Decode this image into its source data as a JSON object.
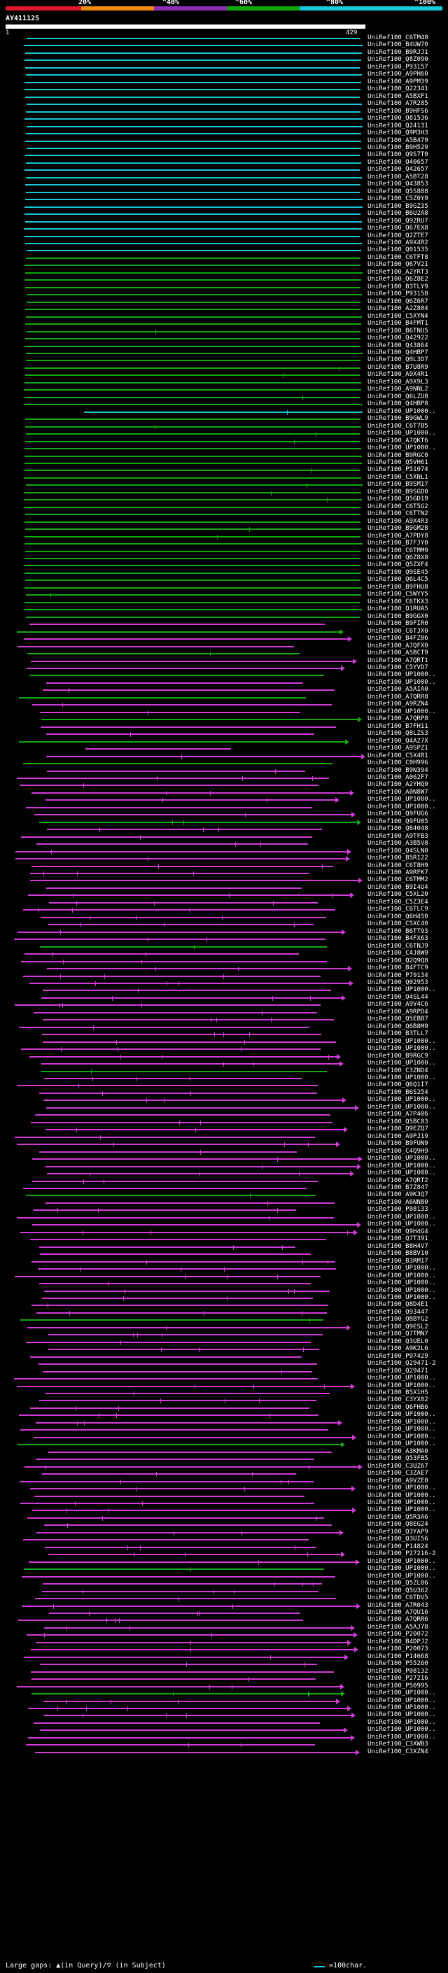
{
  "scale": {
    "labels": [
      "20%",
      "^40%",
      "^60%",
      "^80%",
      "^100%"
    ],
    "colors": [
      "#e01a2c",
      "#f08a10",
      "#8c2fb5",
      "#13a80d",
      "#18c8d8"
    ]
  },
  "query": {
    "id": "AY411125",
    "start": "1",
    "end": "429"
  },
  "footer": {
    "left_text": "Large gaps: ▲(in Query)/▽ (in Subject)",
    "right_text": "=100char.",
    "legend_color": "#18c8d8"
  },
  "colors": {
    "cyan": "#18c8d8",
    "green": "#13a80d",
    "magenta": "#d13cd6"
  },
  "hits": [
    "UniRef100_C6TM48",
    "UniRef100_B4UW70",
    "UniRef100_B9RJJ1",
    "UniRef100_Q8Z090",
    "UniRef100_P93157",
    "UniRef100_A9PH60",
    "UniRef100_A9PM39",
    "UniRef100_Q22341",
    "UniRef100_A5BXF1",
    "UniRef100_A7R285",
    "UniRef100_B9HFS6",
    "UniRef100_Q81536",
    "UniRef100_Q24131",
    "UniRef100_Q9M3H3",
    "UniRef100_A5B479",
    "UniRef100_B9H529",
    "UniRef100_Q9S7T0",
    "UniRef100_Q40657",
    "UniRef100_Q42657",
    "UniRef100_A5BT28",
    "UniRef100_Q43853",
    "UniRef100_Q5S888",
    "UniRef100_C5Z0Y9",
    "UniRef100_B9GZ35",
    "UniRef100_B6U2A8",
    "UniRef100_Q9ZRU7",
    "UniRef100_Q67EX8",
    "UniRef100_Q2ZTE7",
    "UniRef100_A9X4R2",
    "UniRef100_Q01535",
    "UniRef100_C6TFT8",
    "UniRef100_Q67V21",
    "UniRef100_A2YRT3",
    "UniRef100_Q6Z8E2",
    "UniRef100_B3TLY9",
    "UniRef100_P93158",
    "UniRef100_Q6Z6R7",
    "UniRef100_A2Z804",
    "UniRef100_C5XYN4",
    "UniRef100_B4FMT1",
    "UniRef100_B6TNU5",
    "UniRef100_Q42922",
    "UniRef100_Q43864",
    "UniRef100_Q4HBP7",
    "UniRef100_Q0L3D7",
    "UniRef100_B7U8R9",
    "UniRef100_A9X4R1",
    "UniRef100_A9X9L3",
    "UniRef100_A9NNL2",
    "UniRef100_Q6LZU8",
    "UniRef100_Q4HBP8",
    "UniRef100_UP1000..",
    "UniRef100_B9GWL9",
    "UniRef100_C6T7B5",
    "UniRef100_UP1000..",
    "UniRef100_A7QKT6",
    "UniRef100_UP1000..",
    "UniRef100_B9RGC0",
    "UniRef100_Q5VH61",
    "UniRef100_P51074",
    "UniRef100_C5XNL1",
    "UniRef100_B9SM17",
    "UniRef100_B9SGD0",
    "UniRef100_Q5GD19",
    "UniRef100_C6T5G2",
    "UniRef100_C6TTN2",
    "UniRef100_A9X4R3",
    "UniRef100_B9GM28",
    "UniRef100_A7PDY8",
    "UniRef100_B7FJY0",
    "UniRef100_C6TMM9",
    "UniRef100_Q6Z8X8",
    "UniRef100_Q5ZXF4",
    "UniRef100_Q9SE45",
    "UniRef100_Q6L4C5",
    "UniRef100_B9FHU8",
    "UniRef100_C5WYY5",
    "UniRef100_C6TKX3",
    "UniRef100_Q1RUA5",
    "UniRef100_B9GGX0",
    "UniRef100_B9FIR0",
    "UniRef100_C6TJX0",
    "UniRef100_B4FZ06",
    "UniRef100_A7QFX0",
    "UniRef100_A5BCT9",
    "UniRef100_A7QRT1",
    "UniRef100_C5YVD7",
    "UniRef100_UP1000..",
    "UniRef100_UP1000..",
    "UniRef100_A5AIA0",
    "UniRef100_A7QRR8",
    "UniRef100_A9RZN4",
    "UniRef100_UP1000..",
    "UniRef100_A7QRP8",
    "UniRef100_B7FH11",
    "UniRef100_Q8LZS3",
    "UniRef100_Q4A27X",
    "UniRef100_A9SPZ1",
    "UniRef100_C5X4R1",
    "UniRef100_C0H996",
    "UniRef100_B9N394",
    "UniRef100_A062F7",
    "UniRef100_A2YHQ9",
    "UniRef100_A0N8W7",
    "UniRef100_UP1000..",
    "UniRef100_UP1000..",
    "UniRef100_Q9FUG6",
    "UniRef100_Q9FU05",
    "UniRef100_Q84048",
    "UniRef100_A9TFB3",
    "UniRef100_A3B5V8",
    "UniRef100_Q4SLN0",
    "UniRef100_B5RI22",
    "UniRef100_C6T8H9",
    "UniRef100_A9RFK7",
    "UniRef100_C6TMM2",
    "UniRef100_B9I4U4",
    "UniRef100_C5XL20",
    "UniRef100_C5Z3E4",
    "UniRef100_C6TLC9",
    "UniRef100_Q6H450",
    "UniRef100_C5XC40",
    "UniRef100_B6TT93",
    "UniRef100_B4FX63",
    "UniRef100_C6TNJ9",
    "UniRef100_C4J8W9",
    "UniRef100_Q2Q9Q8",
    "UniRef100_B4FTC9",
    "UniRef100_P79134",
    "UniRef100_Q02953",
    "UniRef100_UP1000..",
    "UniRef100_Q4SL44",
    "UniRef100_A9V4C6",
    "UniRef100_A9RPD4",
    "UniRef100_Q5EBB7",
    "UniRef100_Q6B8M9",
    "UniRef100_B3TLL7",
    "UniRef100_UP1000..",
    "UniRef100_UP1000..",
    "UniRef100_B9RGC9",
    "UniRef100_UP1000..",
    "UniRef100_C3ZND4",
    "UniRef100_UP1000..",
    "UniRef100_Q6Q1I7",
    "UniRef100_B6S254",
    "UniRef100_UP1000..",
    "UniRef100_UP1000..",
    "UniRef100_A7P406",
    "UniRef100_Q5BC03",
    "UniRef100_Q9EZQ7",
    "UniRef100_A9PJ19",
    "UniRef100_B9FUN9",
    "UniRef100_C4Q9H9",
    "UniRef100_UP1000..",
    "UniRef100_UP1000..",
    "UniRef100_UP1000..",
    "UniRef100_A7QRT2",
    "UniRef100_B7Z847",
    "UniRef100_A9K3Q7",
    "UniRef100_A6NN80",
    "UniRef100_P08133",
    "UniRef100_UP1000..",
    "UniRef100_UP1000..",
    "UniRef100_Q9H4G4",
    "UniRef100_Q7T391",
    "UniRef100_B8H4V7",
    "UniRef100_B8BV10",
    "UniRef100_B3RM17",
    "UniRef100_UP1000..",
    "UniRef100_UP1000..",
    "UniRef100_UP1000..",
    "UniRef100_UP1000..",
    "UniRef100_UP1000..",
    "UniRef100_Q8D4E1",
    "UniRef100_Q93447",
    "UniRef100_Q8BYG2",
    "UniRef100_Q9ESL2",
    "UniRef100_Q7TMN7",
    "UniRef100_Q3UEL0",
    "UniRef100_A9K2L6",
    "UniRef100_P97429",
    "UniRef100_Q29471-2",
    "UniRef100_Q29471",
    "UniRef100_UP1000..",
    "UniRef100_UP1000..",
    "UniRef100_B5X1H5",
    "UniRef100_C3YX02",
    "UniRef100_Q6FHB6",
    "UniRef100_UP1000..",
    "UniRef100_UP1000..",
    "UniRef100_UP1000..",
    "UniRef100_UP1000..",
    "UniRef100_UP1000..",
    "UniRef100_A3KMA0",
    "UniRef100_Q53FB5",
    "UniRef100_C3UZ67",
    "UniRef100_C3ZAE7",
    "UniRef100_A9VZE0",
    "UniRef100_UP1000..",
    "UniRef100_UP1000..",
    "UniRef100_UP1000..",
    "UniRef100_UP1000..",
    "UniRef100_Q5R3A6",
    "UniRef100_Q8EG24",
    "UniRef100_Q3YAP9",
    "UniRef100_Q3UI56",
    "UniRef100_P14824",
    "UniRef100_P27216-2",
    "UniRef100_UP1000..",
    "UniRef100_UP1000..",
    "UniRef100_UP1000..",
    "UniRef100_Q5ZL06",
    "UniRef100_Q5U362",
    "UniRef100_C6TDV5",
    "UniRef100_A7R043",
    "UniRef100_A7QU16",
    "UniRef100_A7QRR6",
    "UniRef100_A5AJ78",
    "UniRef100_P20072",
    "UniRef100_B4DPJ2",
    "UniRef100_P20073",
    "UniRef100_P14668",
    "UniRef100_P55260",
    "UniRef100_P08132",
    "UniRef100_P27216",
    "UniRef100_P50995",
    "UniRef100_UP1000..",
    "UniRef100_UP1000..",
    "UniRef100_UP1000..",
    "UniRef100_UP1000..",
    "UniRef100_UP1000..",
    "UniRef100_UP1000..",
    "UniRef100_UP1000..",
    "UniRef100_C3XWB3",
    "UniRef100_C3XZN4"
  ]
}
